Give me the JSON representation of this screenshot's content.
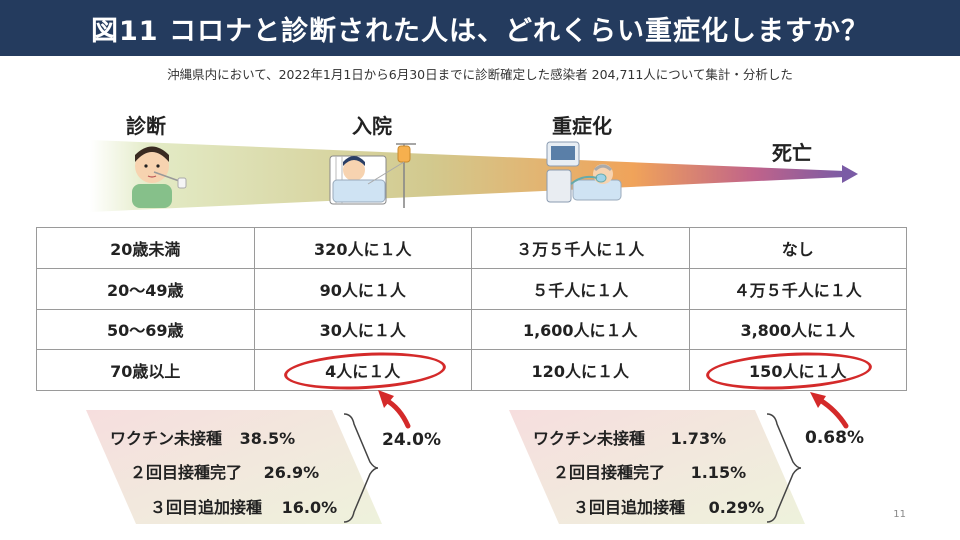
{
  "title": "図11 コロナと診断された人は、どれくらい重症化しますか？",
  "subtitle": "沖縄県内において、2022年1月1日から6月30日までに診断確定した感染者 204,711人について集計・分析した",
  "stages": {
    "diagnosis": "診断",
    "hospitalization": "入院",
    "severe": "重症化",
    "death": "死亡"
  },
  "table": {
    "rows": [
      {
        "age": "20歳未満",
        "hospital": "320人に１人",
        "severe": "３万５千人に１人",
        "death": "なし"
      },
      {
        "age": "20～49歳",
        "hospital": "90人に１人",
        "severe": "５千人に１人",
        "death": "４万５千人に１人"
      },
      {
        "age": "50～69歳",
        "hospital": "30人に１人",
        "severe": "1,600人に１人",
        "death": "3,800人に１人"
      },
      {
        "age": "70歳以上",
        "hospital": "4人に１人",
        "severe": "120人に１人",
        "death": "150人に１人"
      }
    ]
  },
  "vaccination_hospital": {
    "rows": [
      {
        "label": "ワクチン未接種",
        "value": "38.5%"
      },
      {
        "label": "２回目接種完了",
        "value": "26.9%"
      },
      {
        "label": "３回目追加接種",
        "value": "16.0%"
      }
    ],
    "overall": "24.0%"
  },
  "vaccination_death": {
    "rows": [
      {
        "label": "ワクチン未接種",
        "value": "1.73%"
      },
      {
        "label": "２回目接種完了",
        "value": "1.15%"
      },
      {
        "label": "３回目追加接種",
        "value": "0.29%"
      }
    ],
    "overall": "0.68%"
  },
  "page_number": "11",
  "colors": {
    "title_bg": "#243b5e",
    "highlight": "#d42a2a",
    "vax_left": "#f6dede",
    "vax_right": "#eef2dc",
    "arrow_green": "#d9e4b8",
    "arrow_orange": "#f0a35a",
    "arrow_purple": "#7a5ba5"
  },
  "icons": [
    "nasal-swab-person-icon",
    "hospital-bed-patient-icon",
    "ventilator-patient-icon"
  ]
}
